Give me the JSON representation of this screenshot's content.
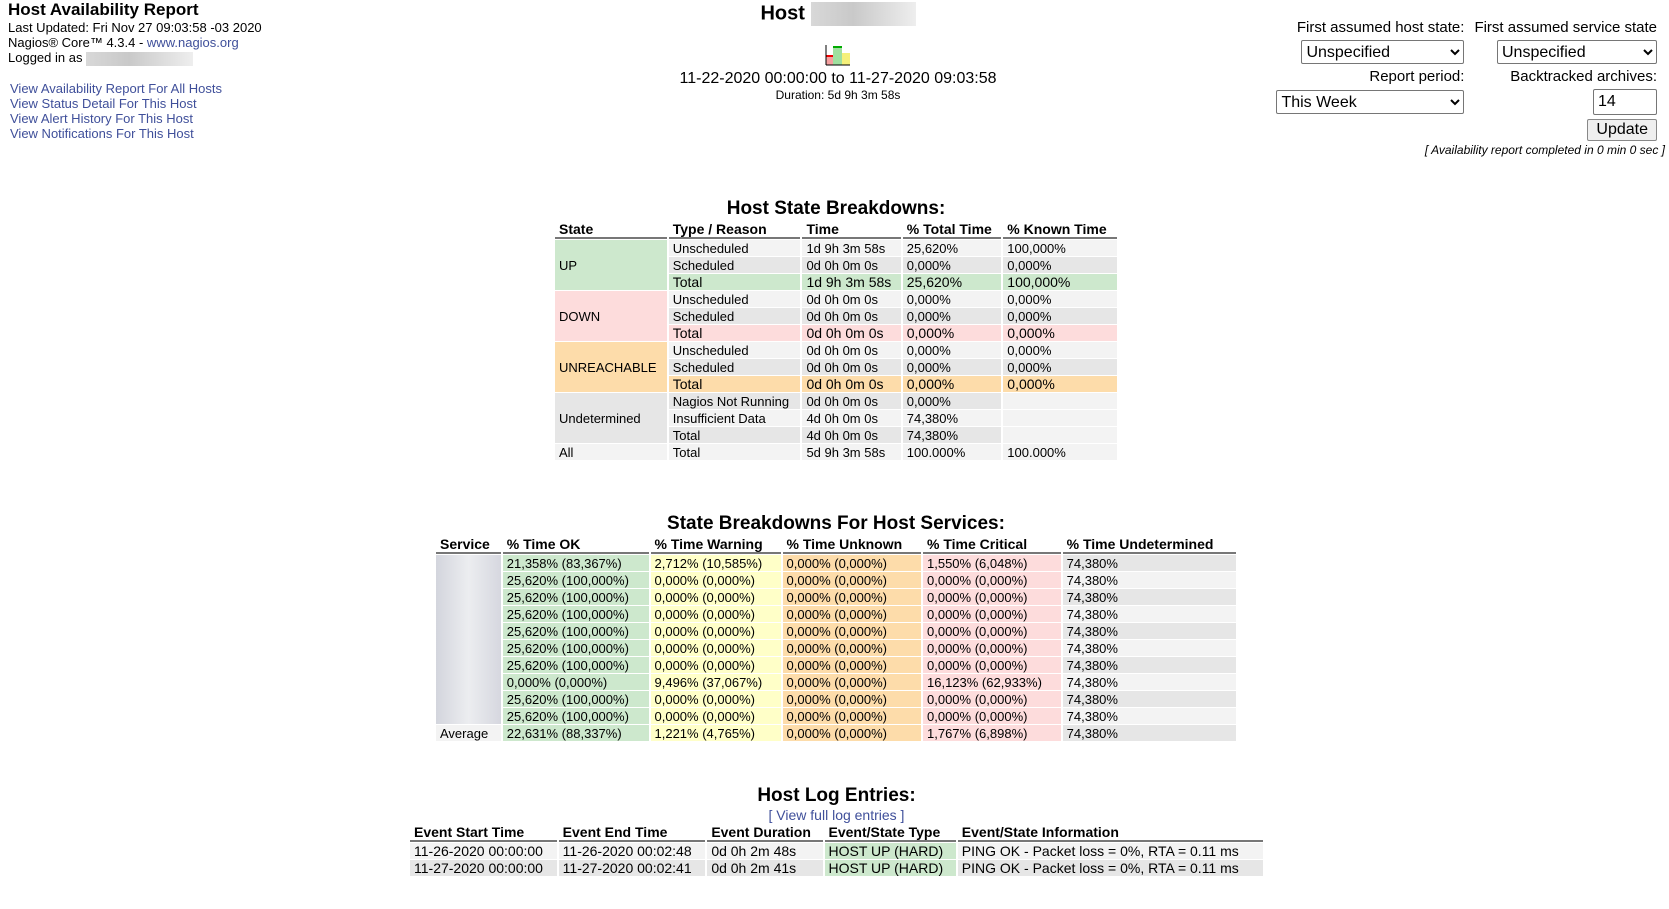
{
  "header": {
    "title": "Host Availability Report",
    "last_updated": "Last Updated: Fri Nov 27 09:03:58 -03 2020",
    "version_prefix": "Nagios® Core™ 4.3.4 - ",
    "version_link": "www.nagios.org",
    "logged_in": "Logged in as"
  },
  "links": [
    "View Availability Report For All Hosts",
    "View Status Detail For This Host",
    "View Alert History For This Host",
    "View Notifications For This Host"
  ],
  "center": {
    "host_label": "Host",
    "range": "11-22-2020 00:00:00 to 11-27-2020 09:03:58",
    "duration": "Duration: 5d 9h 3m 58s",
    "icon": "trends-chart-icon"
  },
  "form": {
    "host_state_label": "First assumed host state:",
    "host_state_value": "Unspecified",
    "service_state_label": "First assumed service state",
    "service_state_value": "Unspecified",
    "period_label": "Report period:",
    "period_value": "This Week",
    "archives_label": "Backtracked archives:",
    "archives_value": "14",
    "update": "Update",
    "completed": "[ Availability report completed in 0 min 0 sec ]"
  },
  "host_table": {
    "title": "Host State Breakdowns:",
    "headers": [
      "State",
      "Type / Reason",
      "Time",
      "% Total Time",
      "% Known Time"
    ],
    "groups": [
      {
        "state": "UP",
        "cls": "up",
        "rows": [
          [
            "Unscheduled",
            "1d 9h 3m 58s",
            "25,620%",
            "100,000%"
          ],
          [
            "Scheduled",
            "0d 0h 0m 0s",
            "0,000%",
            "0,000%"
          ],
          [
            "Total",
            "1d 9h 3m 58s",
            "25,620%",
            "100,000%"
          ]
        ]
      },
      {
        "state": "DOWN",
        "cls": "down",
        "rows": [
          [
            "Unscheduled",
            "0d 0h 0m 0s",
            "0,000%",
            "0,000%"
          ],
          [
            "Scheduled",
            "0d 0h 0m 0s",
            "0,000%",
            "0,000%"
          ],
          [
            "Total",
            "0d 0h 0m 0s",
            "0,000%",
            "0,000%"
          ]
        ]
      },
      {
        "state": "UNREACHABLE",
        "cls": "unr",
        "rows": [
          [
            "Unscheduled",
            "0d 0h 0m 0s",
            "0,000%",
            "0,000%"
          ],
          [
            "Scheduled",
            "0d 0h 0m 0s",
            "0,000%",
            "0,000%"
          ],
          [
            "Total",
            "0d 0h 0m 0s",
            "0,000%",
            "0,000%"
          ]
        ]
      },
      {
        "state": "Undetermined",
        "cls": "g2",
        "rows": [
          [
            "Nagios Not Running",
            "0d 0h 0m 0s",
            "0,000%",
            ""
          ],
          [
            "Insufficient Data",
            "4d 0h 0m 0s",
            "74,380%",
            ""
          ],
          [
            "Total",
            "4d 0h 0m 0s",
            "74,380%",
            ""
          ]
        ]
      },
      {
        "state": "All",
        "cls": "g1",
        "rows": [
          [
            "Total",
            "5d 9h 3m 58s",
            "100.000%",
            "100.000%"
          ]
        ]
      }
    ]
  },
  "service_table": {
    "title": "State Breakdowns For Host Services:",
    "headers": [
      "Service",
      "% Time OK",
      "% Time Warning",
      "% Time Unknown",
      "% Time Critical",
      "% Time Undetermined"
    ],
    "rows": [
      [
        "21,358% (83,367%)",
        "2,712% (10,585%)",
        "0,000% (0,000%)",
        "1,550% (6,048%)",
        "74,380%"
      ],
      [
        "25,620% (100,000%)",
        "0,000% (0,000%)",
        "0,000% (0,000%)",
        "0,000% (0,000%)",
        "74,380%"
      ],
      [
        "25,620% (100,000%)",
        "0,000% (0,000%)",
        "0,000% (0,000%)",
        "0,000% (0,000%)",
        "74,380%"
      ],
      [
        "25,620% (100,000%)",
        "0,000% (0,000%)",
        "0,000% (0,000%)",
        "0,000% (0,000%)",
        "74,380%"
      ],
      [
        "25,620% (100,000%)",
        "0,000% (0,000%)",
        "0,000% (0,000%)",
        "0,000% (0,000%)",
        "74,380%"
      ],
      [
        "25,620% (100,000%)",
        "0,000% (0,000%)",
        "0,000% (0,000%)",
        "0,000% (0,000%)",
        "74,380%"
      ],
      [
        "25,620% (100,000%)",
        "0,000% (0,000%)",
        "0,000% (0,000%)",
        "0,000% (0,000%)",
        "74,380%"
      ],
      [
        "0,000% (0,000%)",
        "9,496% (37,067%)",
        "0,000% (0,000%)",
        "16,123% (62,933%)",
        "74,380%"
      ],
      [
        "25,620% (100,000%)",
        "0,000% (0,000%)",
        "0,000% (0,000%)",
        "0,000% (0,000%)",
        "74,380%"
      ],
      [
        "25,620% (100,000%)",
        "0,000% (0,000%)",
        "0,000% (0,000%)",
        "0,000% (0,000%)",
        "74,380%"
      ]
    ],
    "average_label": "Average",
    "average": [
      "22,631% (88,337%)",
      "1,221% (4,765%)",
      "0,000% (0,000%)",
      "1,767% (6,898%)",
      "74,380%"
    ]
  },
  "log": {
    "title": "Host Log Entries:",
    "view_full": "[ View full log entries ]",
    "headers": [
      "Event Start Time",
      "Event End Time",
      "Event Duration",
      "Event/State Type",
      "Event/State Information"
    ],
    "rows": [
      [
        "11-26-2020 00:00:00",
        "11-26-2020 00:02:48",
        "0d 0h 2m 48s",
        "HOST UP (HARD)",
        "PING OK - Packet loss = 0%, RTA = 0.11 ms"
      ],
      [
        "11-27-2020 00:00:00",
        "11-27-2020 00:02:41",
        "0d 0h 2m 41s",
        "HOST UP (HARD)",
        "PING OK - Packet loss = 0%, RTA = 0.11 ms"
      ]
    ]
  }
}
